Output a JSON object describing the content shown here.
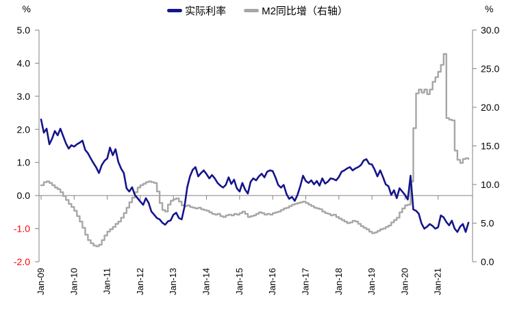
{
  "chart_data": {
    "type": "line",
    "title": "",
    "left_axis": {
      "unit": "%",
      "range": [
        -2.0,
        5.0
      ],
      "tick_labels": [
        "5.0",
        "4.0",
        "3.0",
        "2.0",
        "1.0",
        "0.0",
        "-1.0",
        "-2.0"
      ],
      "tick_values": [
        5,
        4,
        3,
        2,
        1,
        0,
        -1,
        -2
      ],
      "label_color": "#000000",
      "negative_color": "#FF0000"
    },
    "right_axis": {
      "unit": "%",
      "range": [
        0.0,
        30.0
      ],
      "tick_labels": [
        "30.0",
        "25.0",
        "20.0",
        "15.0",
        "10.0",
        "5.0",
        "0.0"
      ],
      "tick_values": [
        30,
        25,
        20,
        15,
        10,
        5,
        0
      ],
      "label_color": "#000000"
    },
    "x_axis": {
      "tick_labels": [
        "Jan-09",
        "Jan-10",
        "Jan-11",
        "Jan-12",
        "Jan-13",
        "Jan-14",
        "Jan-15",
        "Jan-16",
        "Jan-17",
        "Jan-18",
        "Jan-19",
        "Jan-20",
        "Jan-21"
      ],
      "tick_indices": [
        0,
        12,
        24,
        36,
        48,
        60,
        72,
        84,
        96,
        108,
        120,
        132,
        144
      ],
      "months_total": 156
    },
    "grid": "zero-line-only",
    "legend_position": "top-center",
    "series": [
      {
        "name": "实际利率",
        "axis": "left",
        "color": "#14148C",
        "interpolation": "linear",
        "values": [
          2.3,
          1.9,
          2.02,
          1.55,
          1.72,
          1.95,
          1.82,
          2.02,
          1.8,
          1.58,
          1.42,
          1.52,
          1.48,
          1.55,
          1.6,
          1.66,
          1.38,
          1.28,
          1.12,
          0.98,
          0.85,
          0.68,
          0.92,
          1.05,
          1.12,
          1.45,
          1.22,
          1.4,
          1.02,
          0.82,
          0.68,
          0.22,
          0.12,
          0.25,
          0.02,
          -0.08,
          -0.18,
          -0.28,
          -0.08,
          -0.22,
          -0.48,
          -0.58,
          -0.68,
          -0.72,
          -0.82,
          -0.88,
          -0.78,
          -0.75,
          -0.58,
          -0.52,
          -0.68,
          -0.72,
          -0.35,
          0.25,
          0.58,
          0.78,
          0.86,
          0.58,
          0.68,
          0.76,
          0.65,
          0.52,
          0.62,
          0.52,
          0.38,
          0.3,
          0.24,
          0.32,
          0.55,
          0.35,
          0.48,
          0.22,
          0.12,
          0.38,
          0.18,
          0.06,
          0.42,
          0.52,
          0.46,
          0.58,
          0.66,
          0.55,
          0.72,
          0.76,
          0.74,
          0.55,
          0.32,
          0.24,
          0.32,
          0.05,
          -0.1,
          -0.04,
          -0.16,
          0.02,
          0.28,
          0.6,
          0.44,
          0.38,
          0.46,
          0.34,
          0.44,
          0.3,
          0.52,
          0.36,
          0.42,
          0.52,
          0.5,
          0.46,
          0.56,
          0.72,
          0.76,
          0.82,
          0.86,
          0.76,
          0.82,
          0.86,
          0.92,
          1.06,
          1.1,
          0.96,
          0.94,
          0.78,
          0.58,
          0.76,
          0.56,
          0.34,
          0.28,
          0.02,
          0.16,
          -0.08,
          0.22,
          0.12,
          0.02,
          -0.12,
          0.6,
          -0.42,
          -0.46,
          -0.55,
          -0.85,
          -1.0,
          -0.94,
          -0.86,
          -0.92,
          -1.0,
          -0.96,
          -0.6,
          -0.66,
          -0.8,
          -0.9,
          -0.76,
          -1.0,
          -1.1,
          -0.94,
          -0.86,
          -1.1,
          -0.82
        ]
      },
      {
        "name": "M2同比增（右轴）",
        "axis": "right",
        "color": "#A6A6A6",
        "interpolation": "step",
        "values": [
          9.9,
          10.3,
          10.4,
          10.2,
          9.9,
          9.6,
          9.4,
          9.0,
          8.5,
          8.0,
          7.5,
          7.1,
          6.6,
          5.9,
          5.2,
          4.4,
          3.5,
          2.8,
          2.4,
          2.1,
          2.0,
          2.2,
          2.8,
          3.4,
          3.9,
          4.2,
          4.5,
          4.9,
          5.2,
          5.7,
          6.3,
          7.0,
          7.7,
          8.3,
          9.0,
          9.6,
          9.9,
          10.1,
          10.3,
          10.4,
          10.3,
          10.2,
          9.1,
          7.6,
          6.7,
          6.5,
          7.4,
          7.9,
          8.1,
          8.2,
          7.8,
          7.3,
          7.2,
          7.3,
          7.1,
          7.0,
          6.9,
          7.0,
          6.8,
          6.7,
          6.6,
          6.4,
          6.2,
          6.1,
          6.2,
          5.9,
          5.8,
          6.0,
          6.1,
          6.0,
          6.2,
          6.1,
          6.3,
          6.5,
          6.2,
          5.8,
          5.9,
          6.0,
          6.2,
          6.4,
          6.3,
          6.1,
          6.2,
          6.1,
          6.3,
          6.4,
          6.5,
          6.7,
          6.9,
          7.0,
          7.2,
          7.4,
          7.5,
          7.6,
          7.7,
          7.8,
          7.6,
          7.4,
          7.2,
          7.0,
          6.9,
          6.8,
          6.5,
          6.3,
          6.2,
          6.0,
          6.1,
          5.8,
          5.6,
          5.4,
          5.2,
          5.0,
          5.1,
          5.3,
          5.2,
          4.9,
          4.6,
          4.4,
          4.2,
          3.9,
          3.7,
          3.8,
          4.0,
          4.2,
          4.3,
          4.5,
          4.7,
          5.1,
          5.4,
          5.7,
          6.4,
          6.9,
          7.3,
          7.4,
          10.4,
          17.3,
          21.8,
          22.3,
          21.9,
          22.3,
          21.7,
          22.3,
          23.3,
          23.9,
          24.6,
          25.5,
          26.9,
          18.6,
          18.4,
          18.3,
          14.4,
          13.2,
          12.8,
          13.3,
          13.4,
          13.3
        ]
      }
    ]
  },
  "legend": {
    "items": [
      {
        "label": "实际利率"
      },
      {
        "label": "M2同比增（右轴）"
      }
    ]
  },
  "axis_colors": {
    "line": "#808080"
  }
}
